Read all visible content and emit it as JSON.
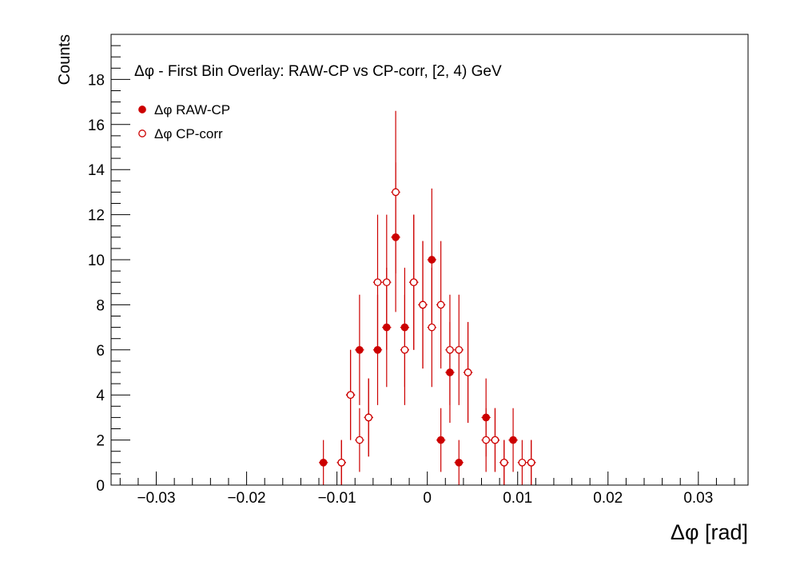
{
  "chart_data": {
    "type": "scatter",
    "title": "Δφ  -  First Bin Overlay: RAW-CP vs CP-corr, [2, 4) GeV",
    "xlabel": "Δφ  [rad]",
    "ylabel": "Counts",
    "xlim": [
      -0.035,
      0.0355
    ],
    "ylim": [
      0,
      20
    ],
    "x_ticks": [
      -0.03,
      -0.02,
      -0.01,
      0,
      0.01,
      0.02,
      0.03
    ],
    "x_tick_labels": [
      "−0.03",
      "−0.02",
      "−0.01",
      "0",
      "0.01",
      "0.02",
      "0.03"
    ],
    "y_ticks": [
      0,
      2,
      4,
      6,
      8,
      10,
      12,
      14,
      16,
      18
    ],
    "y_tick_labels": [
      "0",
      "2",
      "4",
      "6",
      "8",
      "10",
      "12",
      "14",
      "16",
      "18"
    ],
    "bin_width": 0.001,
    "grid": false,
    "legend_position": "top-left",
    "color": "#cc0000",
    "series": [
      {
        "name": "Δφ RAW-CP",
        "marker": "filled-circle",
        "points": [
          {
            "x": -0.0115,
            "y": 1
          },
          {
            "x": -0.0095,
            "y": 1
          },
          {
            "x": -0.0085,
            "y": 4
          },
          {
            "x": -0.0075,
            "y": 6
          },
          {
            "x": -0.0065,
            "y": 3
          },
          {
            "x": -0.0055,
            "y": 6
          },
          {
            "x": -0.0045,
            "y": 7
          },
          {
            "x": -0.0035,
            "y": 11
          },
          {
            "x": -0.0025,
            "y": 7
          },
          {
            "x": -0.0015,
            "y": 9
          },
          {
            "x": -0.0005,
            "y": 8
          },
          {
            "x": 0.0005,
            "y": 10
          },
          {
            "x": 0.0015,
            "y": 2
          },
          {
            "x": 0.0025,
            "y": 5
          },
          {
            "x": 0.0035,
            "y": 1
          },
          {
            "x": 0.0045,
            "y": 5
          },
          {
            "x": 0.0065,
            "y": 3
          },
          {
            "x": 0.0075,
            "y": 2
          },
          {
            "x": 0.0085,
            "y": 1
          },
          {
            "x": 0.0095,
            "y": 2
          },
          {
            "x": 0.0115,
            "y": 1
          }
        ]
      },
      {
        "name": "Δφ CP-corr",
        "marker": "open-circle",
        "points": [
          {
            "x": -0.0095,
            "y": 1
          },
          {
            "x": -0.0085,
            "y": 4
          },
          {
            "x": -0.0075,
            "y": 2
          },
          {
            "x": -0.0065,
            "y": 3
          },
          {
            "x": -0.0055,
            "y": 9
          },
          {
            "x": -0.0045,
            "y": 9
          },
          {
            "x": -0.0035,
            "y": 13
          },
          {
            "x": -0.0025,
            "y": 6
          },
          {
            "x": -0.0015,
            "y": 9
          },
          {
            "x": -0.0005,
            "y": 8
          },
          {
            "x": 0.0005,
            "y": 7
          },
          {
            "x": 0.0015,
            "y": 8
          },
          {
            "x": 0.0025,
            "y": 6
          },
          {
            "x": 0.0035,
            "y": 6
          },
          {
            "x": 0.0045,
            "y": 5
          },
          {
            "x": 0.0065,
            "y": 2
          },
          {
            "x": 0.0075,
            "y": 2
          },
          {
            "x": 0.0085,
            "y": 1
          },
          {
            "x": 0.0105,
            "y": 1
          },
          {
            "x": 0.0115,
            "y": 1
          }
        ]
      }
    ]
  }
}
